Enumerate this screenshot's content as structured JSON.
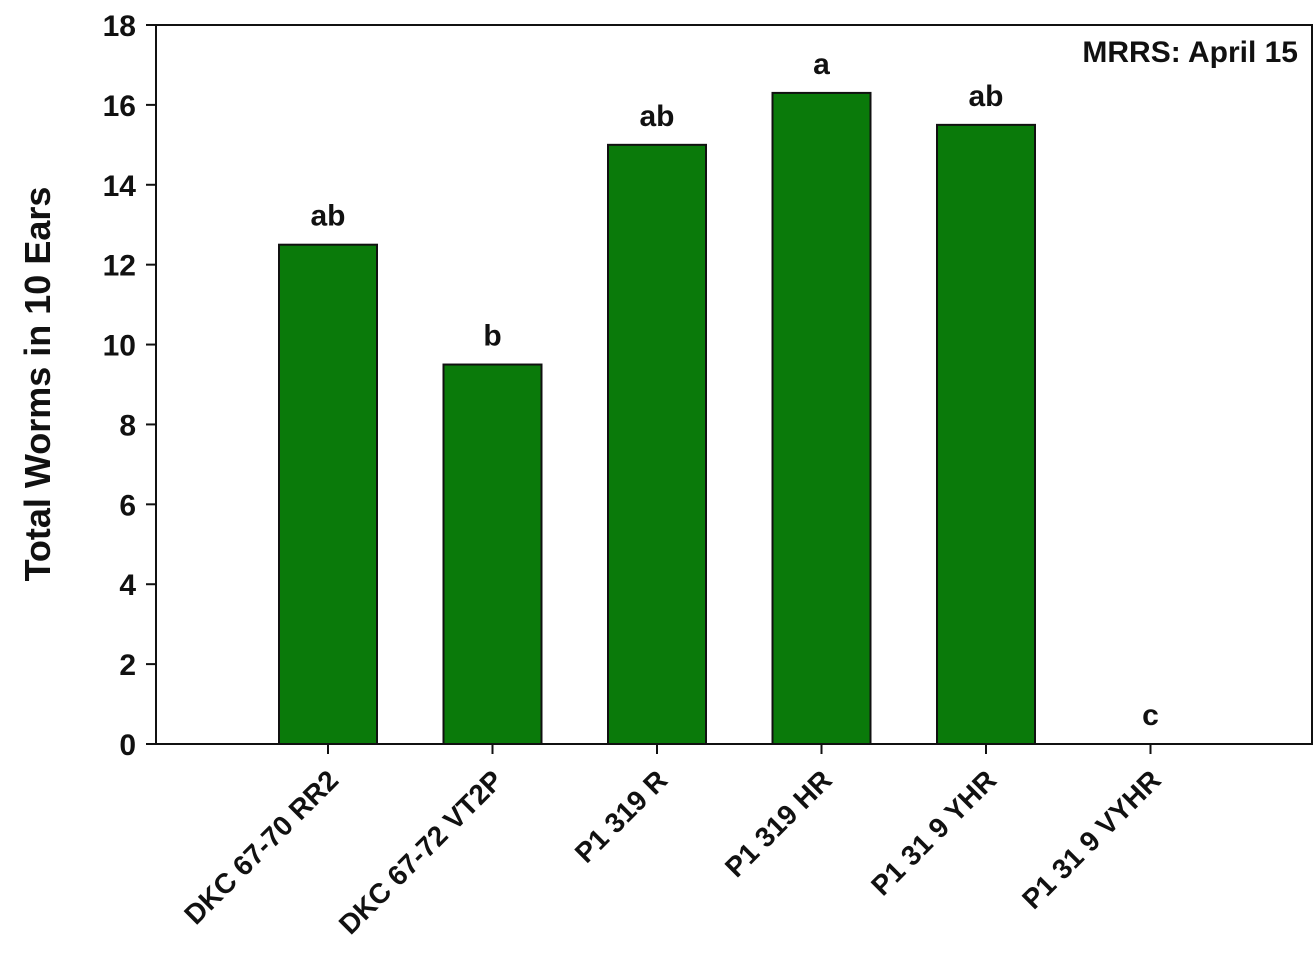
{
  "chart_data": {
    "type": "bar",
    "annotation": "MRRS: April 15",
    "ylabel": "Total Worms in 10 Ears",
    "xlabel": "",
    "ylim": [
      0,
      18
    ],
    "yticks": [
      0,
      2,
      4,
      6,
      8,
      10,
      12,
      14,
      16,
      18
    ],
    "categories": [
      "DKC 67-70 RR2",
      "DKC 67-72 VT2P",
      "P1 319 R",
      "P1 319 HR",
      "P1 31 9 YHR",
      "P1 31 9 VYHR"
    ],
    "values": [
      12.5,
      9.5,
      15.0,
      16.3,
      15.5,
      0
    ],
    "letters": [
      "ab",
      "b",
      "ab",
      "a",
      "ab",
      "c"
    ],
    "bar_color": "#0a7a0a",
    "grid": false
  }
}
